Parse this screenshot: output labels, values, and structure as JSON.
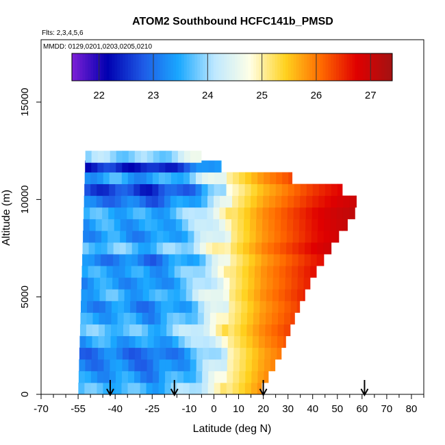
{
  "chart_data": {
    "type": "heatmap",
    "title": "ATOM2 Southbound HCFC141b_PMSD",
    "subtitle_flights": "Flts: 2,3,4,5,6",
    "subtitle_dates": "MMDD: 0129,0201,0203,0205,0210",
    "xlabel": "Latitude (deg N)",
    "ylabel": "Altitude (m)",
    "xlim": [
      -70,
      85
    ],
    "ylim": [
      0,
      17500
    ],
    "x_ticks": [
      -70,
      -55,
      -40,
      -25,
      -10,
      0,
      10,
      20,
      30,
      40,
      50,
      60,
      70,
      80
    ],
    "x_tick_labels": [
      "-70",
      "-55",
      "-40",
      "-25",
      "-10",
      "0",
      "10",
      "20",
      "30",
      "40",
      "50",
      "60",
      "70",
      "80"
    ],
    "x_minor_ticks": [
      -65,
      -60,
      -50,
      -45,
      -35,
      -30,
      -20,
      -15,
      -5,
      5,
      15,
      25,
      35,
      45,
      55,
      65,
      75,
      85
    ],
    "y_ticks": [
      0,
      5000,
      10000,
      15000
    ],
    "y_tick_labels": [
      "0",
      "5000",
      "10000",
      "15000"
    ],
    "colorbar": {
      "range": [
        21.5,
        27.4
      ],
      "ticks": [
        22,
        23,
        24,
        25,
        26,
        27
      ],
      "tick_labels": [
        "22",
        "23",
        "24",
        "25",
        "26",
        "27"
      ],
      "colors": [
        "#7e1fd6",
        "#0000b0",
        "#1e5ae6",
        "#1aa8ff",
        "#bde8ff",
        "#ffffe6",
        "#ffd21e",
        "#ff6a00",
        "#e00000",
        "#a31212"
      ]
    },
    "arrow_latitudes": [
      -42,
      -16,
      20,
      61
    ],
    "profile": {
      "southern_edge_bottom": -55,
      "southern_edge_top": -52,
      "northern_edge_by_altitude": [
        [
          0,
          18
        ],
        [
          2000,
          27
        ],
        [
          4000,
          33
        ],
        [
          6000,
          40
        ],
        [
          8000,
          50
        ],
        [
          9200,
          57
        ],
        [
          10200,
          58
        ],
        [
          10800,
          46
        ],
        [
          11700,
          3
        ],
        [
          12500,
          -10
        ]
      ],
      "gradient_points": [
        [
          -55,
          23.6
        ],
        [
          -40,
          23.7
        ],
        [
          -25,
          23.5
        ],
        [
          -10,
          24.0
        ],
        [
          0,
          24.7
        ],
        [
          10,
          25.3
        ],
        [
          20,
          25.9
        ],
        [
          30,
          26.3
        ],
        [
          40,
          26.7
        ],
        [
          50,
          27.0
        ],
        [
          60,
          27.2
        ]
      ],
      "bands": [
        {
          "alt": 300,
          "offset": 0.0
        },
        {
          "alt": 900,
          "offset": -0.3
        },
        {
          "alt": 1500,
          "offset": -0.5
        },
        {
          "alt": 2100,
          "offset": -0.6
        },
        {
          "alt": 2700,
          "offset": -0.2
        },
        {
          "alt": 3300,
          "offset": 0.1
        },
        {
          "alt": 3900,
          "offset": -0.2
        },
        {
          "alt": 4500,
          "offset": -0.4
        },
        {
          "alt": 5100,
          "offset": -0.1
        },
        {
          "alt": 5700,
          "offset": -0.3
        },
        {
          "alt": 6300,
          "offset": -0.2
        },
        {
          "alt": 6900,
          "offset": -0.5
        },
        {
          "alt": 7500,
          "offset": 0.1
        },
        {
          "alt": 8100,
          "offset": -0.3
        },
        {
          "alt": 8700,
          "offset": -0.2
        },
        {
          "alt": 9300,
          "offset": -0.1
        },
        {
          "alt": 9900,
          "offset": -0.6
        },
        {
          "alt": 10500,
          "offset": -1.0
        },
        {
          "alt": 11100,
          "offset": -0.2
        },
        {
          "alt": 11700,
          "offset": -1.2
        },
        {
          "alt": 12200,
          "offset": 0.3
        }
      ]
    }
  }
}
